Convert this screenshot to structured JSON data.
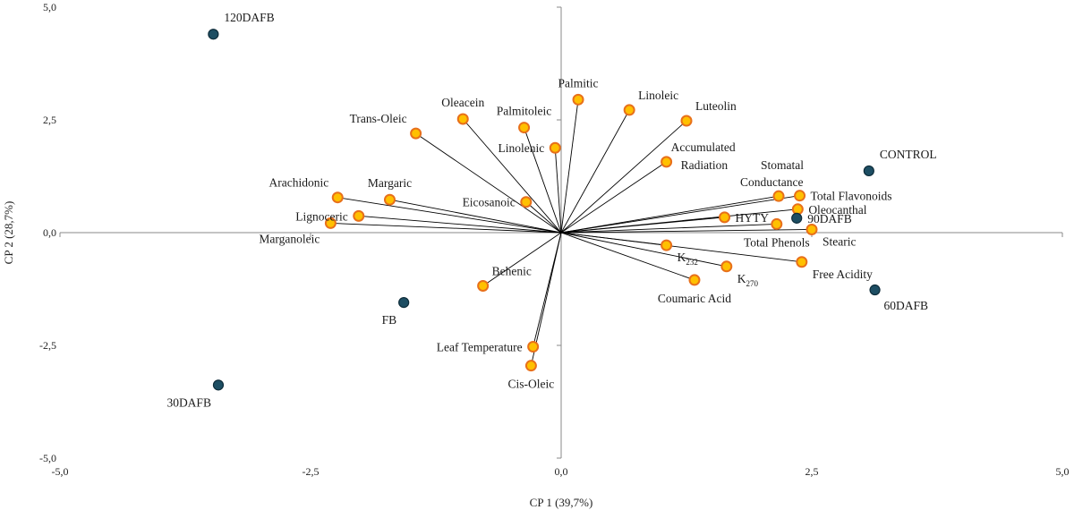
{
  "chart_data": {
    "type": "scatter",
    "subtype": "pca-biplot",
    "title": "",
    "xlabel": "CP 1 (39,7%)",
    "ylabel": "CP 2 (28,7%)",
    "xlim": [
      -5,
      5
    ],
    "ylim": [
      -5,
      5
    ],
    "xticks": [
      -5,
      -2.5,
      0,
      2.5,
      5
    ],
    "yticks": [
      -5,
      -2.5,
      0,
      2.5,
      5
    ],
    "xtick_labels": [
      "-5,0",
      "-2,5",
      "0,0",
      "2,5",
      "5,0"
    ],
    "ytick_labels": [
      "-5,0",
      "-2,5",
      "0,0",
      "2,5",
      "5,0"
    ],
    "grid": false,
    "variables": [
      {
        "name": "Palmitic",
        "x": 0.17,
        "y": 2.95,
        "label_pos": "above"
      },
      {
        "name": "Linoleic",
        "x": 0.68,
        "y": 2.72,
        "label_pos": "above-right"
      },
      {
        "name": "Luteolin",
        "x": 1.25,
        "y": 2.48,
        "label_pos": "above-right"
      },
      {
        "name": "Oleacein",
        "x": -0.98,
        "y": 2.52,
        "label_pos": "above"
      },
      {
        "name": "Palmitoleic",
        "x": -0.37,
        "y": 2.33,
        "label_pos": "above"
      },
      {
        "name": "Trans-Oleic",
        "x": -1.45,
        "y": 2.2,
        "label_pos": "above-left"
      },
      {
        "name": "Linolenic",
        "x": -0.06,
        "y": 1.88,
        "label_pos": "left"
      },
      {
        "name": "Accumulated Radiation",
        "x": 1.05,
        "y": 1.57,
        "label_pos": "accum"
      },
      {
        "name": "Arachidonic",
        "x": -2.23,
        "y": 0.78,
        "label_pos": "above-left"
      },
      {
        "name": "Margaric",
        "x": -1.71,
        "y": 0.73,
        "label_pos": "above"
      },
      {
        "name": "Eicosanoic",
        "x": -0.35,
        "y": 0.68,
        "label_pos": "left"
      },
      {
        "name": "Lignoceric",
        "x": -2.02,
        "y": 0.37,
        "label_pos": "left"
      },
      {
        "name": "Marganoleic",
        "x": -2.3,
        "y": 0.21,
        "label_pos": "below-left"
      },
      {
        "name": "Stomatal Conductance",
        "x": 2.17,
        "y": 0.81,
        "label_pos": "stomatal"
      },
      {
        "name": "Total Flavonoids",
        "x": 2.38,
        "y": 0.82,
        "label_pos": "right"
      },
      {
        "name": "Oleocanthal",
        "x": 2.36,
        "y": 0.52,
        "label_pos": "right"
      },
      {
        "name": "HYTY",
        "x": 1.63,
        "y": 0.34,
        "label_pos": "right"
      },
      {
        "name": "Total Phenols",
        "x": 2.15,
        "y": 0.19,
        "label_pos": "below"
      },
      {
        "name": "Stearic",
        "x": 2.5,
        "y": 0.07,
        "label_pos": "below-right"
      },
      {
        "name": "K",
        "sub": "232",
        "x": 1.05,
        "y": -0.28,
        "label_pos": "below-right"
      },
      {
        "name": "K",
        "sub": "270",
        "x": 1.65,
        "y": -0.75,
        "label_pos": "below-right"
      },
      {
        "name": "Free Acidity",
        "x": 2.4,
        "y": -0.65,
        "label_pos": "below-right"
      },
      {
        "name": "Coumaric Acid",
        "x": 1.33,
        "y": -1.05,
        "label_pos": "below"
      },
      {
        "name": "Behenic",
        "x": -0.78,
        "y": -1.18,
        "label_pos": "above-right"
      },
      {
        "name": "Leaf Temperature",
        "x": -0.28,
        "y": -2.53,
        "label_pos": "left"
      },
      {
        "name": "Cis-Oleic",
        "x": -0.3,
        "y": -2.95,
        "label_pos": "below"
      }
    ],
    "observations": [
      {
        "name": "120DAFB",
        "x": -3.47,
        "y": 4.4,
        "label_pos": "above-right"
      },
      {
        "name": "CONTROL",
        "x": 3.07,
        "y": 1.37,
        "label_pos": "above-right"
      },
      {
        "name": "90DAFB",
        "x": 2.35,
        "y": 0.32,
        "label_pos": "right"
      },
      {
        "name": "60DAFB",
        "x": 3.13,
        "y": -1.27,
        "label_pos": "below-right"
      },
      {
        "name": "FB",
        "x": -1.57,
        "y": -1.55,
        "label_pos": "below-left"
      },
      {
        "name": "30DAFB",
        "x": -3.42,
        "y": -3.38,
        "label_pos": "below-left"
      }
    ]
  }
}
